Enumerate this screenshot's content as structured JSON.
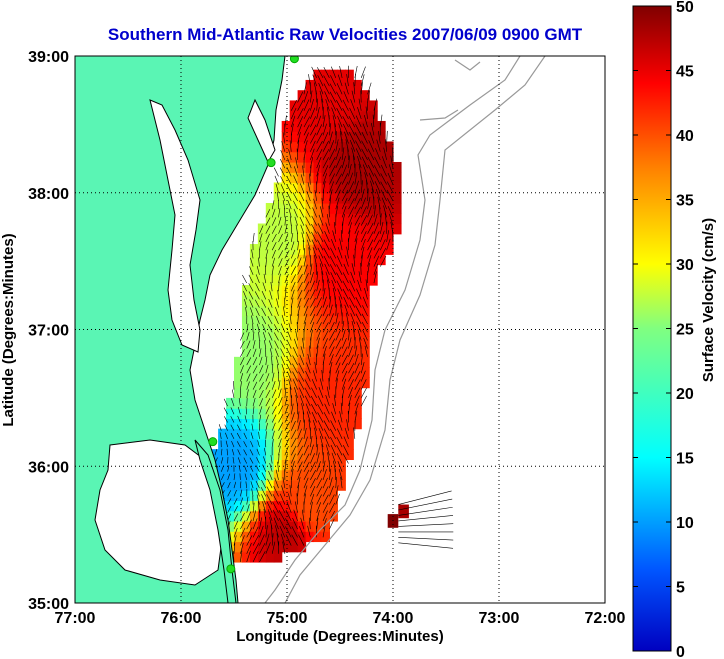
{
  "chart_data": {
    "type": "heatmap",
    "title": "Southern Mid-Atlantic Raw Velocities 2007/06/09 0900 GMT",
    "xlabel": "Longitude (Degrees:Minutes)",
    "ylabel": "Latitude (Degrees:Minutes)",
    "colorbar_label": "Surface Velocity (cm/s)",
    "xlim": [
      -77,
      -72
    ],
    "ylim": [
      35,
      39
    ],
    "x_ticks": [
      "77:00",
      "76:00",
      "75:00",
      "74:00",
      "73:00",
      "72:00"
    ],
    "y_ticks": [
      "35:00",
      "36:00",
      "37:00",
      "38:00",
      "39:00"
    ],
    "colorbar_ticks": [
      "0",
      "5",
      "10",
      "15",
      "20",
      "25",
      "30",
      "35",
      "40",
      "45",
      "50"
    ],
    "colorbar_range": [
      0,
      50
    ],
    "grid": true,
    "land_color": "#5af5b4",
    "coastline_color": "#000000",
    "bathymetry_color": "#999999",
    "station_color": "#22dd22",
    "colormap": "jet",
    "stations": [
      {
        "lon": -74.93,
        "lat": 38.98
      },
      {
        "lon": -75.15,
        "lat": 38.22
      },
      {
        "lon": -75.7,
        "lat": 36.18
      },
      {
        "lon": -75.53,
        "lat": 35.25
      }
    ],
    "velocity_field": [
      {
        "lon": -74.6,
        "lat": 38.7,
        "speed": 45
      },
      {
        "lon": -74.3,
        "lat": 38.2,
        "speed": 48
      },
      {
        "lon": -75.1,
        "lat": 37.7,
        "speed": 28
      },
      {
        "lon": -74.5,
        "lat": 37.5,
        "speed": 44
      },
      {
        "lon": -75.4,
        "lat": 36.8,
        "speed": 26
      },
      {
        "lon": -74.6,
        "lat": 36.5,
        "speed": 42
      },
      {
        "lon": -75.5,
        "lat": 36.0,
        "speed": 14
      },
      {
        "lon": -74.8,
        "lat": 35.7,
        "speed": 40
      },
      {
        "lon": -75.0,
        "lat": 35.5,
        "speed": 47
      },
      {
        "lon": -73.95,
        "lat": 35.5,
        "speed": 50
      }
    ]
  }
}
